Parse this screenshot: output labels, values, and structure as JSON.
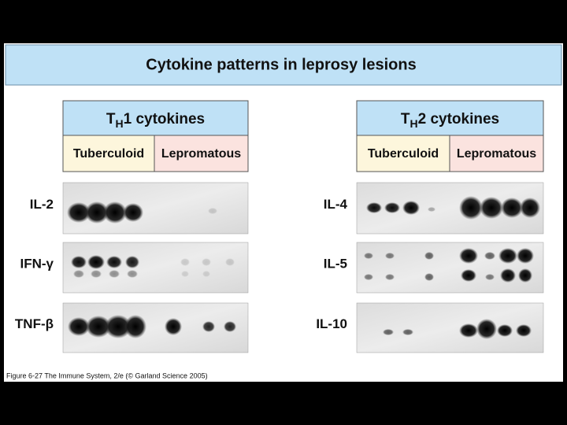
{
  "title": "Cytokine patterns in leprosy lesions",
  "panels": [
    {
      "header": {
        "main": "T",
        "sub": "H",
        "rest": "1 cytokines"
      },
      "columns": [
        "Tuberculoid",
        "Lepromatous"
      ],
      "rows": [
        "IL-2",
        "IFN-γ",
        "TNF-β"
      ]
    },
    {
      "header": {
        "main": "T",
        "sub": "H",
        "rest": "2 cytokines"
      },
      "columns": [
        "Tuberculoid",
        "Lepromatous"
      ],
      "rows": [
        "IL-4",
        "IL-5",
        "IL-10"
      ]
    }
  ],
  "caption": "Figure 6-27 The Immune System, 2/e (© Garland Science 2005)"
}
